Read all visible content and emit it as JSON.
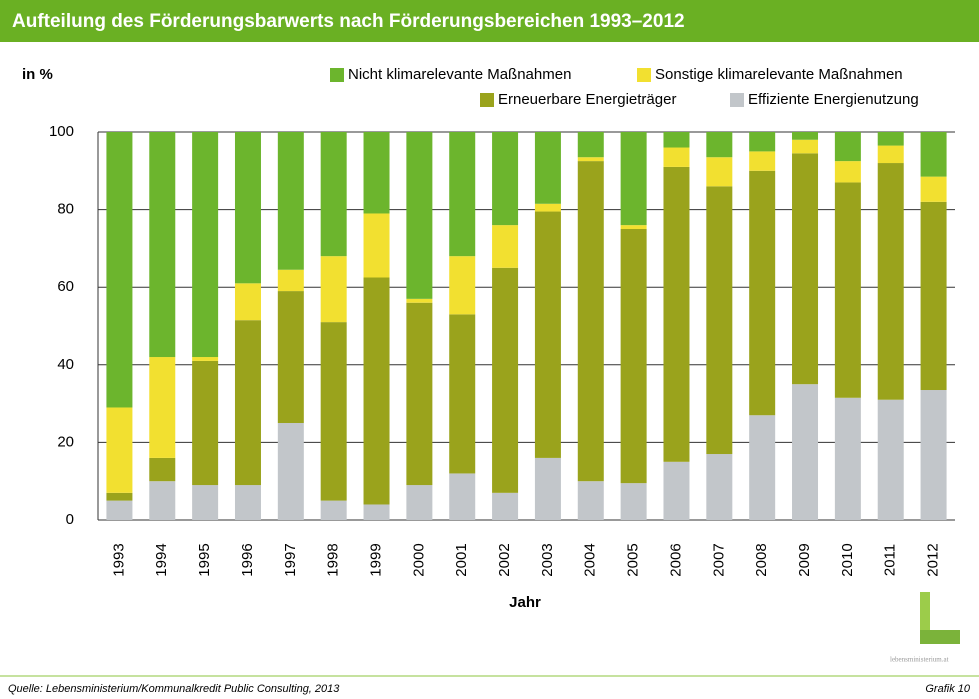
{
  "chart_data": {
    "type": "stacked_bar",
    "title": "Aufteilung des Förderungsbarwerts nach Förderungsbereichen 1993–2012",
    "y_axis_label": "in %",
    "x_axis_label": "Jahr",
    "source": "Quelle: Lebensministerium/Kommunalkredit Public Consulting, 2013",
    "figure_label": "Grafik 10",
    "logo_text": "lebensministerium.at",
    "categories": [
      "1993",
      "1994",
      "1995",
      "1996",
      "1997",
      "1998",
      "1999",
      "2000",
      "2001",
      "2002",
      "2003",
      "2004",
      "2005",
      "2006",
      "2007",
      "2008",
      "2009",
      "2010",
      "2011",
      "2012"
    ],
    "series": [
      {
        "name": "Nicht klimarelevante Maßnahmen",
        "color": "#6cb52d",
        "values": [
          71,
          58,
          58,
          39,
          35.5,
          32,
          21,
          43,
          32,
          24,
          18.5,
          6.5,
          24,
          4,
          6.5,
          5,
          2,
          7.5,
          3.5,
          11.5
        ]
      },
      {
        "name": "Sonstige klimarelevante Maßnahmen",
        "color": "#f2e030",
        "values": [
          22,
          26,
          1,
          9.5,
          5.5,
          17,
          16.5,
          1,
          15,
          11,
          2,
          1,
          1,
          5,
          7.5,
          5,
          3.5,
          5.5,
          4.5,
          6.5
        ]
      },
      {
        "name": "Erneuerbare Energieträger",
        "color": "#9aa31c",
        "values": [
          2,
          6,
          32,
          42.5,
          34,
          46,
          58.5,
          47,
          41,
          58,
          63.5,
          82.5,
          65.5,
          76,
          69,
          63,
          59.5,
          55.5,
          61,
          48.5
        ]
      },
      {
        "name": "Effiziente Energienutzung",
        "color": "#c2c6ca",
        "values": [
          5,
          10,
          9,
          9,
          25,
          5,
          4,
          9,
          12,
          7,
          16,
          10,
          9.5,
          15,
          17,
          27,
          35,
          31.5,
          31,
          33.5
        ]
      }
    ],
    "ylim": [
      0,
      100
    ],
    "yticks": [
      0,
      20,
      40,
      60,
      80,
      100
    ],
    "grid": true
  }
}
